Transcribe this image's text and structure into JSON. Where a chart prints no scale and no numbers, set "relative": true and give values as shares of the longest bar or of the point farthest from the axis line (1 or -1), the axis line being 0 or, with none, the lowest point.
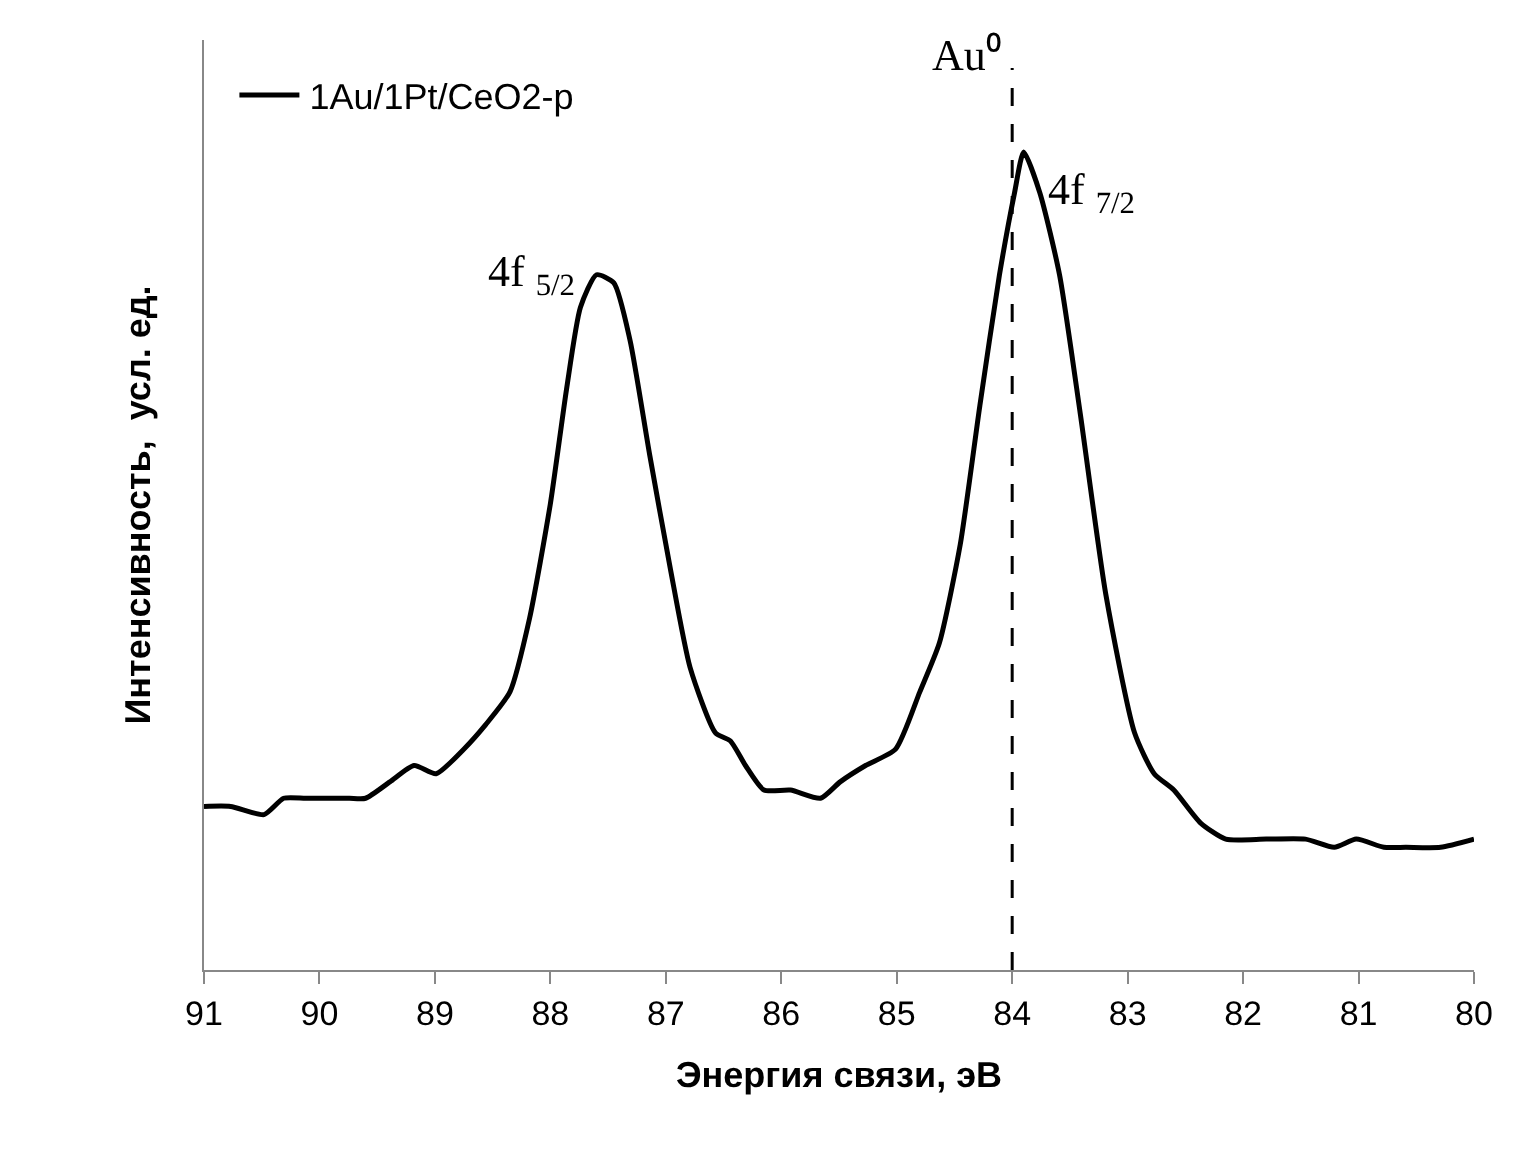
{
  "chart_data": {
    "type": "line",
    "relative": true,
    "xlabel": "Энергия связи, эВ",
    "ylabel": "Интенсивность,  усл. ед.",
    "xlim": [
      91,
      80
    ],
    "xticks": [
      91,
      90,
      89,
      88,
      87,
      86,
      85,
      84,
      83,
      82,
      81,
      80
    ],
    "x": [
      91.0,
      90.77,
      90.48,
      90.31,
      90.12,
      89.91,
      89.74,
      89.6,
      89.39,
      89.18,
      88.99,
      88.75,
      88.56,
      88.35,
      88.18,
      88.0,
      87.86,
      87.74,
      87.6,
      87.45,
      87.31,
      87.14,
      86.96,
      86.79,
      86.57,
      86.44,
      86.31,
      86.15,
      85.92,
      85.66,
      85.49,
      85.27,
      85.01,
      84.8,
      84.63,
      84.45,
      84.28,
      84.11,
      83.98,
      83.9,
      83.76,
      83.59,
      83.41,
      83.19,
      82.94,
      82.77,
      82.6,
      82.37,
      82.15,
      81.8,
      81.46,
      81.21,
      81.02,
      80.78,
      80.59,
      80.29,
      80.0
    ],
    "series": [
      {
        "name": "1Au/1Pt/CeO2-p",
        "color": "#000000",
        "values": [
          0.2,
          0.2,
          0.19,
          0.21,
          0.21,
          0.21,
          0.21,
          0.21,
          0.23,
          0.25,
          0.24,
          0.27,
          0.3,
          0.34,
          0.43,
          0.57,
          0.71,
          0.81,
          0.85,
          0.84,
          0.77,
          0.63,
          0.49,
          0.37,
          0.29,
          0.28,
          0.25,
          0.22,
          0.22,
          0.21,
          0.23,
          0.25,
          0.27,
          0.34,
          0.4,
          0.52,
          0.69,
          0.85,
          0.95,
          1.0,
          0.95,
          0.85,
          0.68,
          0.46,
          0.29,
          0.24,
          0.22,
          0.18,
          0.16,
          0.16,
          0.16,
          0.15,
          0.16,
          0.15,
          0.15,
          0.15,
          0.16
        ]
      }
    ],
    "ref_lines": [
      {
        "axis": "x",
        "value": 84,
        "label": "Au⁰",
        "color": "#000000",
        "line_style": "dashed"
      }
    ],
    "annotations": [
      {
        "text": "4f $_{5/2}$",
        "x": 87.6,
        "y": 0.85
      },
      {
        "text": "4f $_{7/2}$",
        "x": 83.9,
        "y": 1.0
      }
    ],
    "legend": "top left",
    "marker": "none",
    "line_style": "solid"
  }
}
